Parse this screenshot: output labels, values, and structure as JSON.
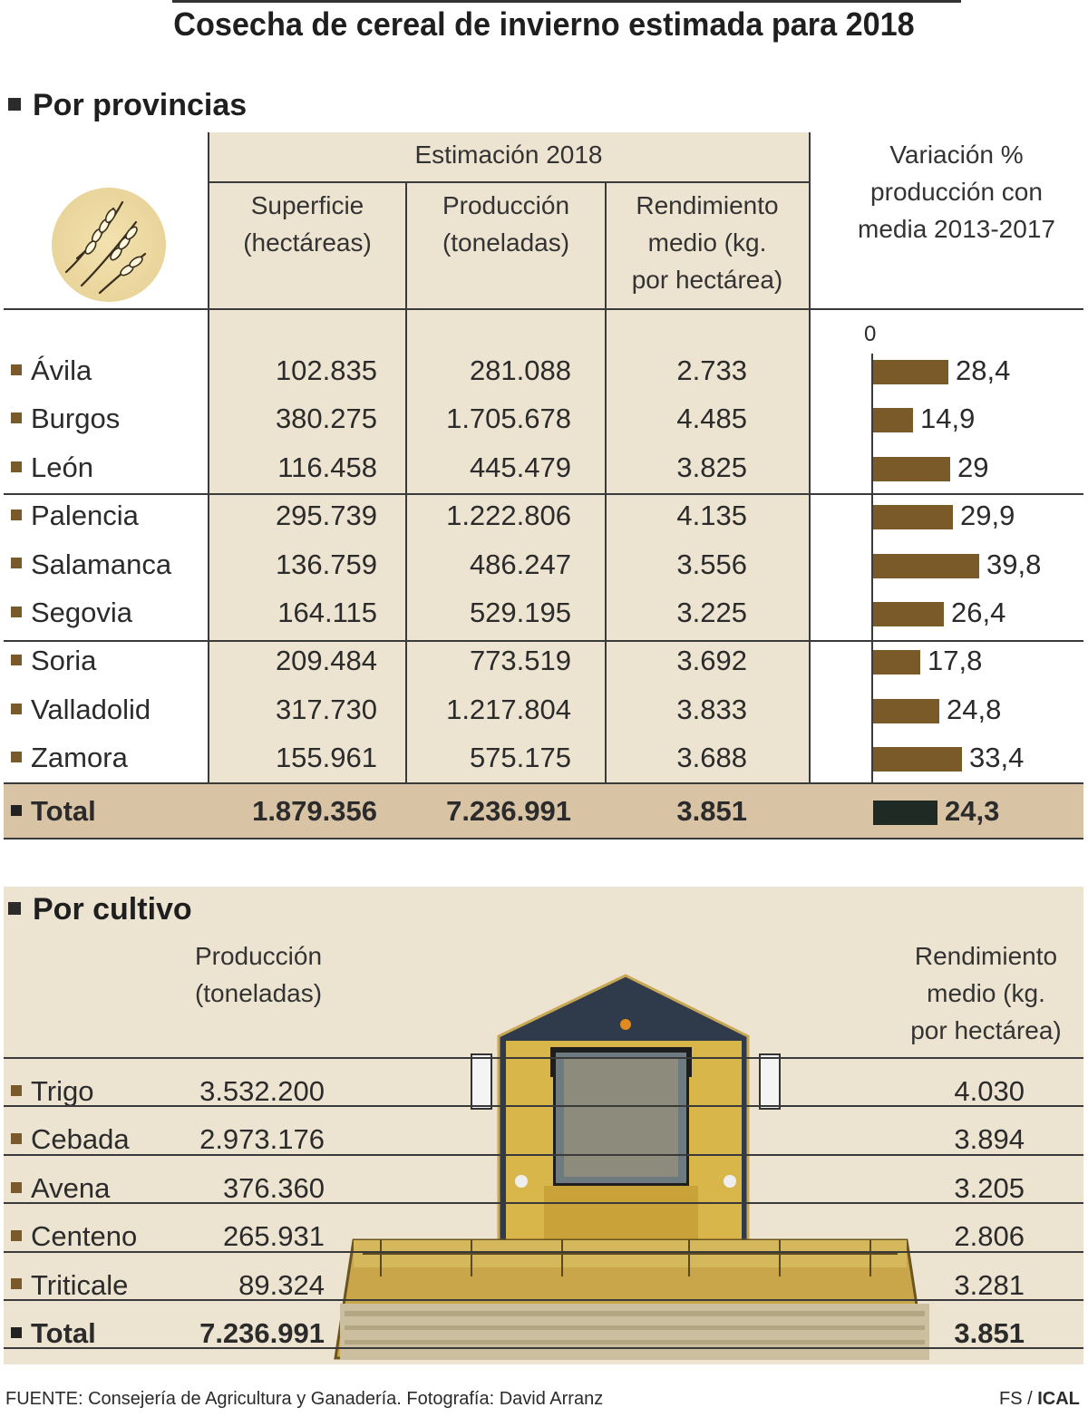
{
  "title": "Cosecha de cereal de invierno estimada para 2018",
  "provincias": {
    "section_title": "Por provincias",
    "group_header": "Estimación 2018",
    "col_headers": {
      "superficie": [
        "Superficie",
        "(hectáreas)"
      ],
      "produccion": [
        "Producción",
        "(toneladas)"
      ],
      "rendimiento": [
        "Rendimiento",
        "medio (kg.",
        "por hectárea)"
      ],
      "variacion": [
        "Variación %",
        "producción con",
        "media 2013-2017"
      ]
    },
    "axis_zero": "0",
    "rows": [
      {
        "name": "Ávila",
        "superficie": "102.835",
        "produccion": "281.088",
        "rendimiento": "2.733",
        "variacion_label": "28,4"
      },
      {
        "name": "Burgos",
        "superficie": "380.275",
        "produccion": "1.705.678",
        "rendimiento": "4.485",
        "variacion_label": "14,9"
      },
      {
        "name": "León",
        "superficie": "116.458",
        "produccion": "445.479",
        "rendimiento": "3.825",
        "variacion_label": "29"
      },
      {
        "name": "Palencia",
        "superficie": "295.739",
        "produccion": "1.222.806",
        "rendimiento": "4.135",
        "variacion_label": "29,9"
      },
      {
        "name": "Salamanca",
        "superficie": "136.759",
        "produccion": "486.247",
        "rendimiento": "3.556",
        "variacion_label": "39,8"
      },
      {
        "name": "Segovia",
        "superficie": "164.115",
        "produccion": "529.195",
        "rendimiento": "3.225",
        "variacion_label": "26,4"
      },
      {
        "name": "Soria",
        "superficie": "209.484",
        "produccion": "773.519",
        "rendimiento": "3.692",
        "variacion_label": "17,8"
      },
      {
        "name": "Valladolid",
        "superficie": "317.730",
        "produccion": "1.217.804",
        "rendimiento": "3.833",
        "variacion_label": "24,8"
      },
      {
        "name": "Zamora",
        "superficie": "155.961",
        "produccion": "575.175",
        "rendimiento": "3.688",
        "variacion_label": "33,4"
      }
    ],
    "total": {
      "name": "Total",
      "superficie": "1.879.356",
      "produccion": "7.236.991",
      "rendimiento": "3.851",
      "variacion_label": "24,3"
    }
  },
  "cultivo": {
    "section_title": "Por cultivo",
    "col_headers": {
      "produccion": [
        "Producción",
        "(toneladas)"
      ],
      "rendimiento": [
        "Rendimiento",
        "medio (kg.",
        "por hectárea)"
      ]
    },
    "rows": [
      {
        "name": "Trigo",
        "produccion": "3.532.200",
        "rendimiento": "4.030"
      },
      {
        "name": "Cebada",
        "produccion": "2.973.176",
        "rendimiento": "3.894"
      },
      {
        "name": "Avena",
        "produccion": "376.360",
        "rendimiento": "3.205"
      },
      {
        "name": "Centeno",
        "produccion": "265.931",
        "rendimiento": "2.806"
      },
      {
        "name": "Triticale",
        "produccion": "89.324",
        "rendimiento": "3.281"
      }
    ],
    "total": {
      "name": "Total",
      "produccion": "7.236.991",
      "rendimiento": "3.851"
    }
  },
  "footer": {
    "source": "FUENTE: Consejería de Agricultura y Ganadería. Fotografía: David Arranz",
    "credit_a": "FS /",
    "credit_b": "ICAL"
  },
  "colors": {
    "bar": "#7b5a29",
    "bar_total": "#1f2a24",
    "beige": "#ede3d1",
    "total_row": "#d8c3a5"
  },
  "chart_data": {
    "type": "bar",
    "orientation": "horizontal",
    "title": "Variación % producción con media 2013-2017",
    "categories": [
      "Ávila",
      "Burgos",
      "León",
      "Palencia",
      "Salamanca",
      "Segovia",
      "Soria",
      "Valladolid",
      "Zamora",
      "Total"
    ],
    "values": [
      28.4,
      14.9,
      29,
      29.9,
      39.8,
      26.4,
      17.8,
      24.8,
      33.4,
      24.3
    ],
    "xlim": [
      0,
      40
    ]
  }
}
